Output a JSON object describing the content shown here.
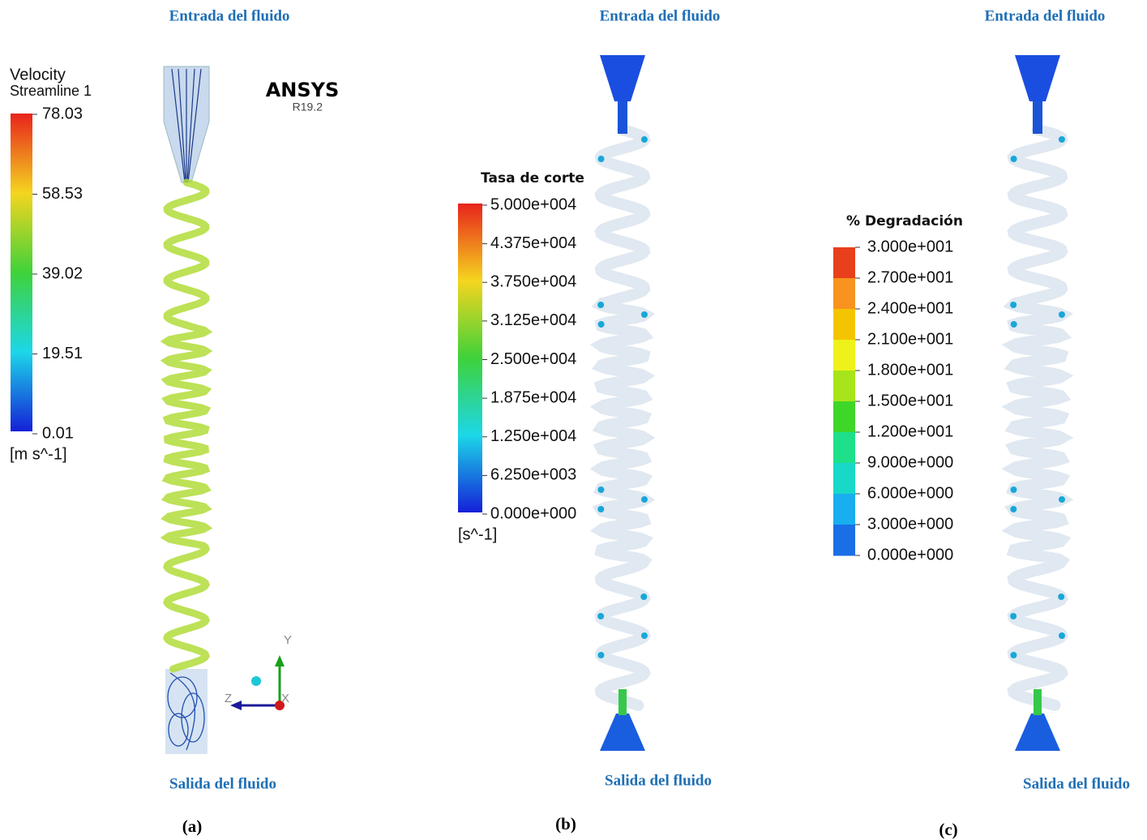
{
  "panels": [
    {
      "inlet": "Entrada del fluido",
      "outlet": "Salida del fluido",
      "label": "(a)",
      "legend": {
        "title": "Velocity",
        "subtitle": "Streamline 1",
        "ticks": [
          "78.03",
          "58.53",
          "39.02",
          "19.51",
          "0.01"
        ],
        "unit": "[m s^-1]"
      },
      "logo": {
        "name": "ANSYS",
        "version": "R19.2"
      },
      "axes": {
        "y": "Y",
        "z": "Z",
        "x": "X"
      }
    },
    {
      "inlet": "Entrada del fluido",
      "outlet": "Salida del fluido",
      "label": "(b)",
      "legend": {
        "title": "Tasa de corte",
        "ticks": [
          "5.000e+004",
          "4.375e+004",
          "3.750e+004",
          "3.125e+004",
          "2.500e+004",
          "1.875e+004",
          "1.250e+004",
          "6.250e+003",
          "0.000e+000"
        ],
        "unit": "[s^-1]"
      }
    },
    {
      "inlet": "Entrada del fluido",
      "outlet": "Salida del fluido",
      "label": "(c)",
      "legend": {
        "title": "% Degradación",
        "ticks": [
          "3.000e+001",
          "2.700e+001",
          "2.400e+001",
          "2.100e+001",
          "1.800e+001",
          "1.500e+001",
          "1.200e+001",
          "9.000e+000",
          "6.000e+000",
          "3.000e+000",
          "0.000e+000"
        ]
      }
    }
  ]
}
